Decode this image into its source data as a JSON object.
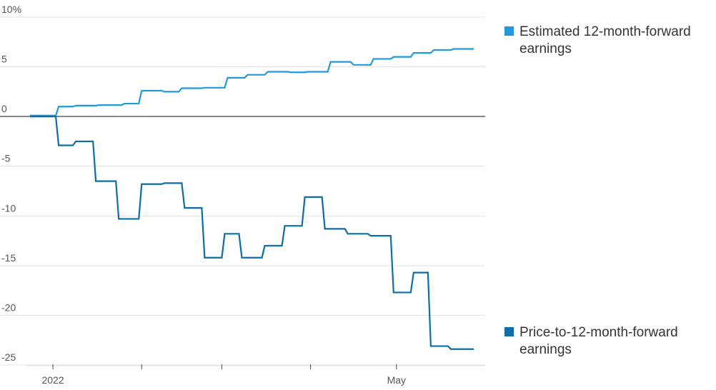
{
  "chart_data": {
    "type": "line",
    "title": "",
    "xlabel": "",
    "ylabel": "",
    "ylim": [
      -25,
      10
    ],
    "yticks": [
      10,
      5,
      0,
      -5,
      -10,
      -15,
      -20,
      -25
    ],
    "ytick_labels": [
      "10%",
      "5",
      "0",
      "-5",
      "-10",
      "-15",
      "-20",
      "-25"
    ],
    "xlim": [
      "2021-12-24",
      "2022-06-01"
    ],
    "xticks": [
      "2022-01-01",
      "2022-02-01",
      "2022-03-01",
      "2022-04-01",
      "2022-05-01"
    ],
    "xtick_labels": [
      "2022",
      "",
      "",
      "",
      "May"
    ],
    "grid": true,
    "legend_placement": "right",
    "series": [
      {
        "name": "Estimated 12-month-forward earnings",
        "color": "#1f9bdc",
        "x": [
          "2021-12-24",
          "2021-12-31",
          "2022-01-02",
          "2022-01-03",
          "2022-01-08",
          "2022-01-09",
          "2022-01-16",
          "2022-01-17",
          "2022-01-25",
          "2022-01-26",
          "2022-01-31",
          "2022-02-01",
          "2022-02-08",
          "2022-02-09",
          "2022-02-14",
          "2022-02-15",
          "2022-02-22",
          "2022-02-23",
          "2022-03-02",
          "2022-03-03",
          "2022-03-09",
          "2022-03-10",
          "2022-03-16",
          "2022-03-17",
          "2022-03-24",
          "2022-03-25",
          "2022-03-30",
          "2022-03-31",
          "2022-04-07",
          "2022-04-08",
          "2022-04-15",
          "2022-04-16",
          "2022-04-22",
          "2022-04-23",
          "2022-04-29",
          "2022-04-30",
          "2022-05-06",
          "2022-05-07",
          "2022-05-13",
          "2022-05-14",
          "2022-05-20",
          "2022-05-21",
          "2022-05-28"
        ],
        "y": [
          0.1,
          0.1,
          0.1,
          1.0,
          1.0,
          1.1,
          1.1,
          1.15,
          1.15,
          1.3,
          1.3,
          2.6,
          2.6,
          2.5,
          2.5,
          2.85,
          2.85,
          2.9,
          2.9,
          3.9,
          3.9,
          4.2,
          4.2,
          4.5,
          4.5,
          4.45,
          4.45,
          4.5,
          4.5,
          5.5,
          5.5,
          5.2,
          5.2,
          5.8,
          5.8,
          6.0,
          6.0,
          6.4,
          6.4,
          6.7,
          6.7,
          6.8,
          6.8
        ]
      },
      {
        "name": "Price-to-12-month-forward earnings",
        "color": "#0a6ea8",
        "x": [
          "2021-12-24",
          "2021-12-31",
          "2022-01-02",
          "2022-01-03",
          "2022-01-08",
          "2022-01-09",
          "2022-01-15",
          "2022-01-16",
          "2022-01-23",
          "2022-01-24",
          "2022-01-31",
          "2022-02-01",
          "2022-02-08",
          "2022-02-09",
          "2022-02-15",
          "2022-02-16",
          "2022-02-22",
          "2022-02-23",
          "2022-03-01",
          "2022-03-02",
          "2022-03-07",
          "2022-03-08",
          "2022-03-15",
          "2022-03-16",
          "2022-03-22",
          "2022-03-23",
          "2022-03-29",
          "2022-03-30",
          "2022-04-05",
          "2022-04-06",
          "2022-04-13",
          "2022-04-14",
          "2022-04-21",
          "2022-04-22",
          "2022-04-29",
          "2022-04-30",
          "2022-05-06",
          "2022-05-07",
          "2022-05-12",
          "2022-05-13",
          "2022-05-19",
          "2022-05-20",
          "2022-05-28"
        ],
        "y": [
          0.0,
          0.0,
          0.0,
          -2.9,
          -2.9,
          -2.5,
          -2.5,
          -6.5,
          -6.5,
          -10.3,
          -10.3,
          -6.8,
          -6.8,
          -6.7,
          -6.7,
          -9.2,
          -9.2,
          -14.2,
          -14.2,
          -11.8,
          -11.8,
          -14.2,
          -14.2,
          -13.0,
          -13.0,
          -11.0,
          -11.0,
          -8.1,
          -8.1,
          -11.3,
          -11.3,
          -11.8,
          -11.8,
          -12.0,
          -12.0,
          -17.7,
          -17.7,
          -15.7,
          -15.7,
          -23.1,
          -23.1,
          -23.4,
          -23.4
        ]
      }
    ]
  }
}
